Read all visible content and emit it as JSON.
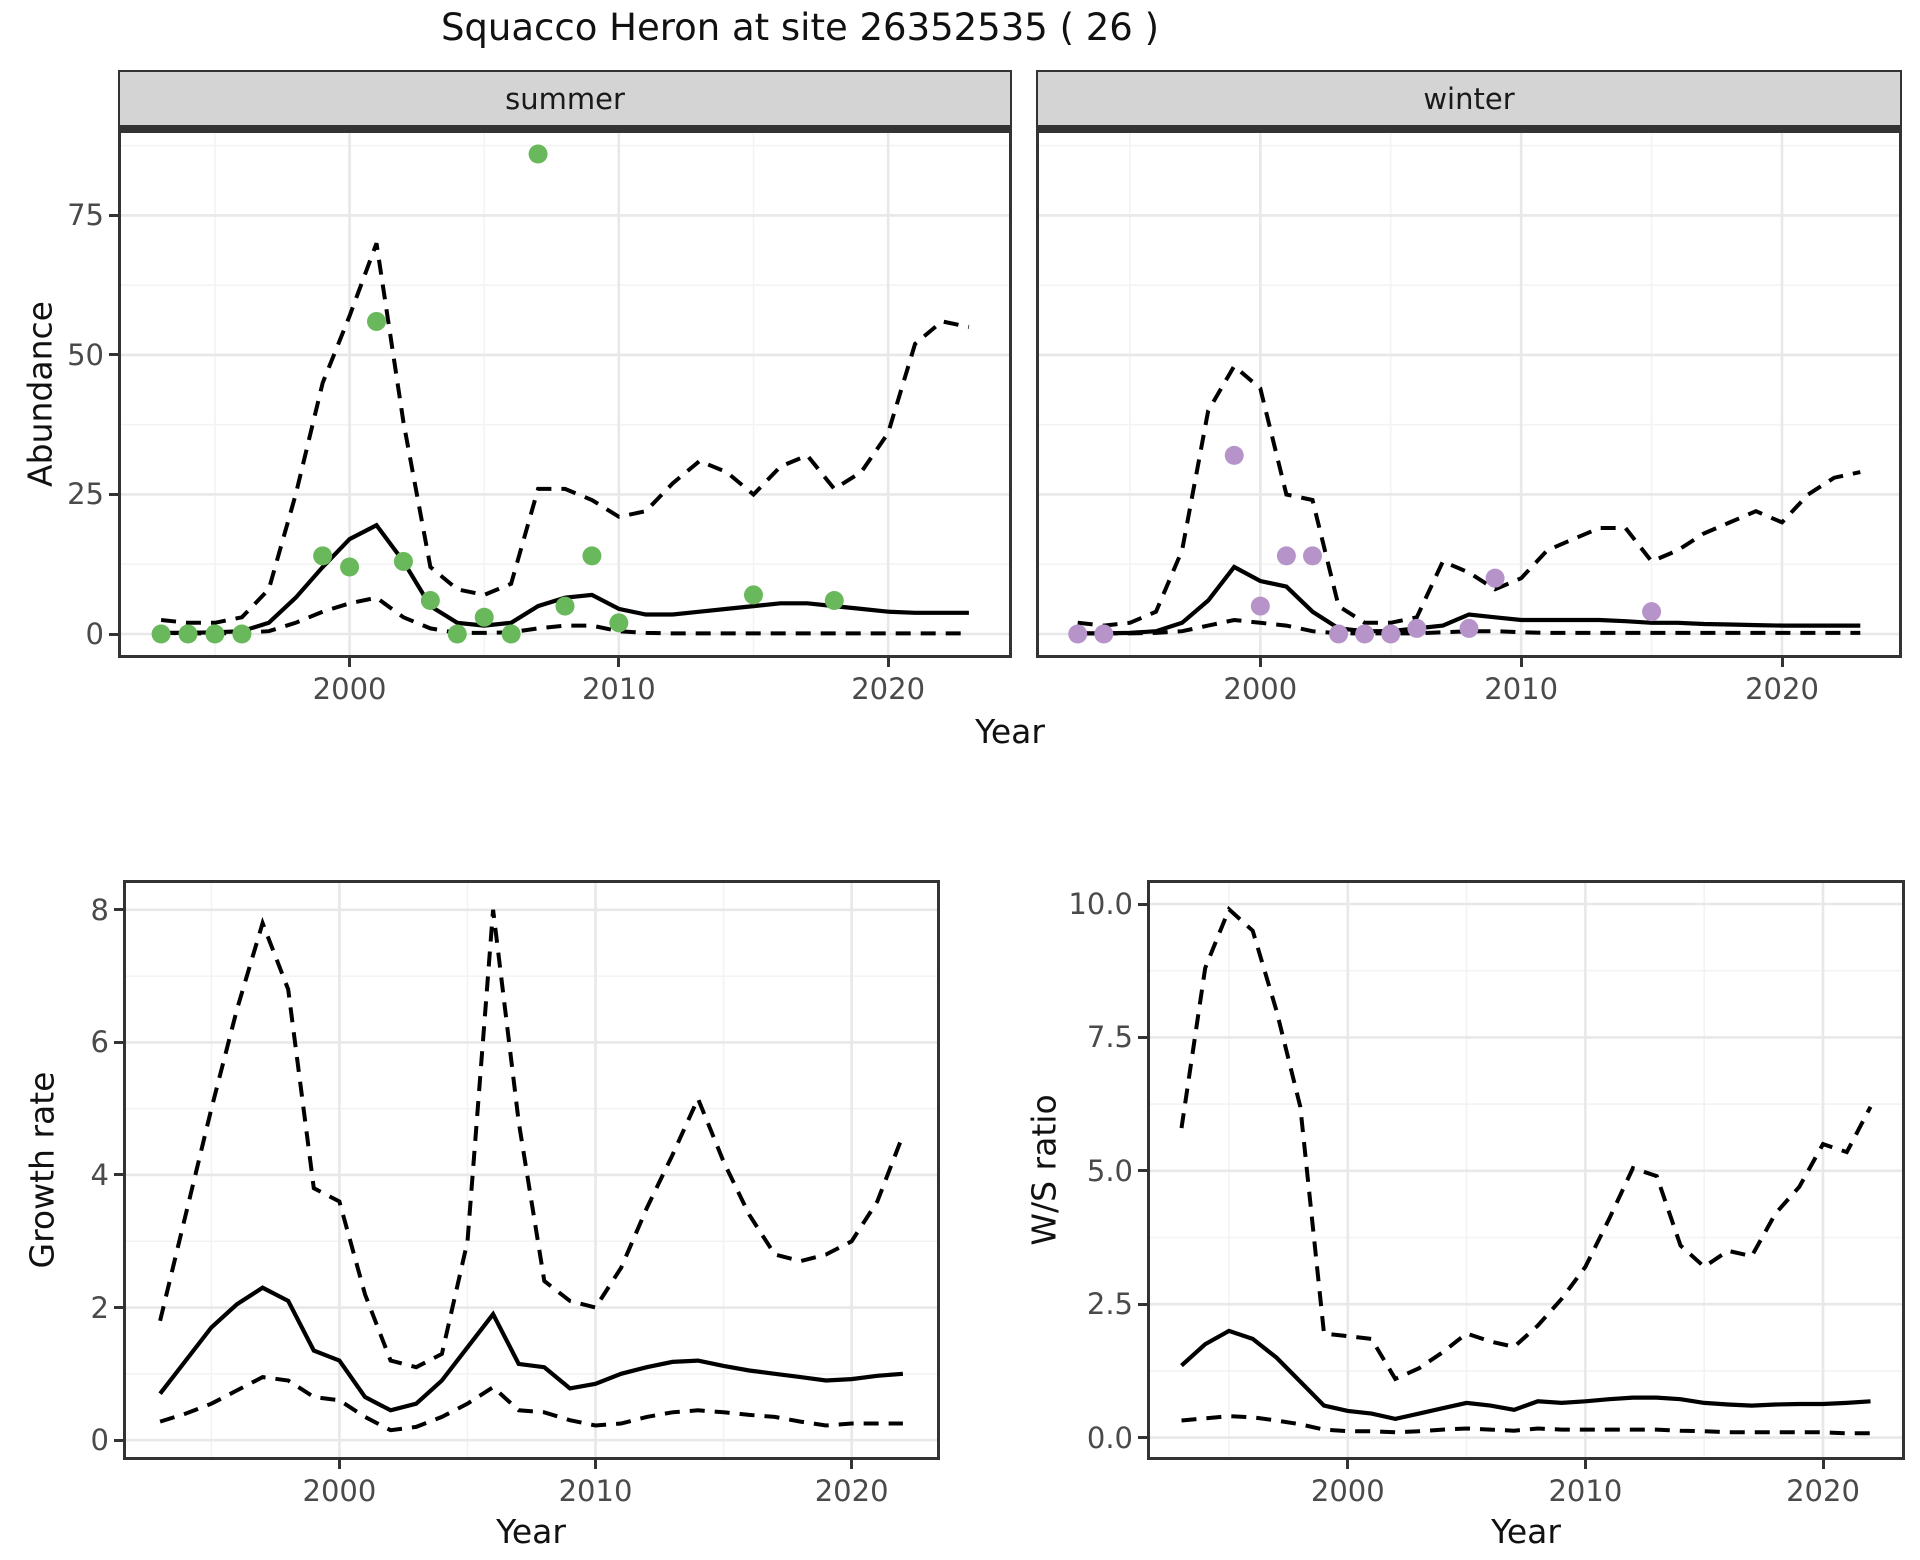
{
  "figure": {
    "title": "Squacco Heron at site 26352535 ( 26 )",
    "background": "#ffffff"
  },
  "colors": {
    "summer_point": "#6ab85c",
    "winter_point": "#b694ca",
    "line": "#000000",
    "grid_major": "#e8e8e8",
    "grid_minor": "#f3f3f3",
    "strip_bg": "#d4d4d4",
    "panel_border": "#333333",
    "tick_label": "#4a4a4a"
  },
  "chart_data": {
    "type": "line",
    "figure_title": "Squacco Heron at site 26352535 ( 26 )",
    "grid": true,
    "legend": false,
    "panels": [
      {
        "id": "abundance-summer",
        "facet": "summer",
        "xlabel": "Year",
        "ylabel": "Abundance",
        "xlim": [
          1991.4,
          2024.6
        ],
        "ylim": [
          -4.3,
          90.3
        ],
        "x_ticks": [
          2000,
          2010,
          2020
        ],
        "x_minor": [
          1995,
          2005,
          2015
        ],
        "y_ticks": [
          0,
          25,
          50,
          75
        ],
        "y_tick_labels": [
          "0",
          "25",
          "50",
          "75"
        ],
        "y_minor": [
          12.5,
          37.5,
          62.5,
          87.5
        ],
        "years": [
          1993,
          1994,
          1995,
          1996,
          1997,
          1998,
          1999,
          2000,
          2001,
          2002,
          2003,
          2004,
          2005,
          2006,
          2007,
          2008,
          2009,
          2010,
          2011,
          2012,
          2013,
          2014,
          2015,
          2016,
          2017,
          2018,
          2019,
          2020,
          2021,
          2022,
          2023
        ],
        "median": [
          0.2,
          0.2,
          0.3,
          0.5,
          2,
          6.5,
          12,
          17,
          19.5,
          13,
          5,
          2,
          1.5,
          2,
          5,
          6.5,
          7,
          4.5,
          3.5,
          3.5,
          4,
          4.5,
          5,
          5.5,
          5.5,
          5,
          4.5,
          4,
          3.8,
          3.8,
          3.8
        ],
        "upper": [
          2.5,
          2,
          2,
          3,
          8,
          25,
          45,
          57,
          70,
          38,
          12,
          8,
          7,
          9,
          26,
          26,
          24,
          21,
          22,
          27,
          31,
          29,
          25,
          30,
          32,
          26,
          29,
          36,
          52,
          56,
          55
        ],
        "lower": [
          0.2,
          0.1,
          0.1,
          0.2,
          0.5,
          2,
          4,
          5.5,
          6.5,
          3,
          1,
          0.2,
          0.2,
          0.3,
          1,
          1.5,
          1.5,
          0.5,
          0.2,
          0.1,
          0.1,
          0.1,
          0.1,
          0.1,
          0.1,
          0.1,
          0.1,
          0.1,
          0.1,
          0.1,
          0.1
        ],
        "points": {
          "name": "summer-observations",
          "color_key": "summer_point",
          "years": [
            1993,
            1994,
            1995,
            1996,
            1999,
            2000,
            2001,
            2002,
            2003,
            2004,
            2005,
            2006,
            2007,
            2008,
            2009,
            2010,
            2015,
            2018
          ],
          "values": [
            0,
            0,
            0,
            0,
            14,
            12,
            56,
            13,
            6,
            0,
            3,
            0,
            86,
            5,
            14,
            2,
            7,
            6
          ]
        }
      },
      {
        "id": "abundance-winter",
        "facet": "winter",
        "xlabel": "Year",
        "ylabel": "Abundance",
        "xlim": [
          1991.4,
          2024.6
        ],
        "ylim": [
          -4.3,
          90.3
        ],
        "x_ticks": [
          2000,
          2010,
          2020
        ],
        "x_minor": [
          1995,
          2005,
          2015
        ],
        "y_ticks": [
          0,
          25,
          50,
          75
        ],
        "y_tick_labels": [],
        "y_minor": [
          12.5,
          37.5,
          62.5,
          87.5
        ],
        "years": [
          1993,
          1994,
          1995,
          1996,
          1997,
          1998,
          1999,
          2000,
          2001,
          2002,
          2003,
          2004,
          2005,
          2006,
          2007,
          2008,
          2009,
          2010,
          2011,
          2012,
          2013,
          2014,
          2015,
          2016,
          2017,
          2018,
          2019,
          2020,
          2021,
          2022,
          2023
        ],
        "median": [
          0.1,
          0.1,
          0.2,
          0.5,
          2,
          6,
          12,
          9.5,
          8.5,
          4,
          1,
          0.5,
          0.5,
          1,
          1.5,
          3.5,
          3,
          2.5,
          2.5,
          2.5,
          2.5,
          2.3,
          2,
          2,
          1.8,
          1.7,
          1.6,
          1.5,
          1.5,
          1.5,
          1.5
        ],
        "upper": [
          2,
          1.5,
          2,
          4,
          15,
          40,
          48,
          44,
          25,
          24,
          5,
          2,
          2,
          3,
          13,
          11,
          8,
          10,
          15,
          17,
          19,
          19,
          13,
          15,
          18,
          20,
          22,
          20,
          25,
          28,
          29
        ],
        "lower": [
          0.1,
          0.1,
          0.1,
          0.2,
          0.5,
          1.5,
          2.5,
          2,
          1.5,
          0.5,
          0.1,
          0.1,
          0.1,
          0.1,
          0.3,
          0.5,
          0.5,
          0.3,
          0.2,
          0.2,
          0.2,
          0.2,
          0.2,
          0.2,
          0.2,
          0.2,
          0.2,
          0.2,
          0.2,
          0.2,
          0.2
        ],
        "points": {
          "name": "winter-observations",
          "color_key": "winter_point",
          "years": [
            1993,
            1994,
            1999,
            2000,
            2001,
            2002,
            2003,
            2004,
            2005,
            2006,
            2008,
            2009,
            2015
          ],
          "values": [
            0,
            0,
            32,
            5,
            14,
            14,
            0,
            0,
            0,
            1,
            1,
            10,
            4
          ]
        }
      },
      {
        "id": "growth-rate",
        "facet": null,
        "xlabel": "Year",
        "ylabel": "Growth rate",
        "xlim": [
          1991.55,
          2023.45
        ],
        "ylim": [
          -0.3,
          8.45
        ],
        "x_ticks": [
          2000,
          2010,
          2020
        ],
        "x_minor": [
          1995,
          2005,
          2015
        ],
        "y_ticks": [
          0,
          2,
          4,
          6,
          8
        ],
        "y_tick_labels": [
          "0",
          "2",
          "4",
          "6",
          "8"
        ],
        "y_minor": [
          1,
          3,
          5,
          7
        ],
        "years": [
          1993,
          1994,
          1995,
          1996,
          1997,
          1998,
          1999,
          2000,
          2001,
          2002,
          2003,
          2004,
          2005,
          2006,
          2007,
          2008,
          2009,
          2010,
          2011,
          2012,
          2013,
          2014,
          2015,
          2016,
          2017,
          2018,
          2019,
          2020,
          2021,
          2022
        ],
        "median": [
          0.7,
          1.2,
          1.7,
          2.05,
          2.3,
          2.1,
          1.35,
          1.2,
          0.65,
          0.45,
          0.55,
          0.9,
          1.4,
          1.9,
          1.15,
          1.1,
          0.78,
          0.85,
          1.0,
          1.1,
          1.18,
          1.2,
          1.12,
          1.05,
          1.0,
          0.95,
          0.9,
          0.92,
          0.97,
          1.0
        ],
        "upper": [
          1.8,
          3.4,
          5.0,
          6.5,
          7.8,
          6.8,
          3.8,
          3.6,
          2.2,
          1.2,
          1.1,
          1.3,
          3.0,
          8.0,
          4.8,
          2.4,
          2.1,
          2.0,
          2.6,
          3.5,
          4.3,
          5.15,
          4.2,
          3.4,
          2.8,
          2.7,
          2.8,
          3.0,
          3.6,
          4.6
        ],
        "lower": [
          0.28,
          0.4,
          0.55,
          0.75,
          0.95,
          0.9,
          0.65,
          0.6,
          0.35,
          0.15,
          0.2,
          0.35,
          0.55,
          0.8,
          0.45,
          0.42,
          0.3,
          0.22,
          0.25,
          0.35,
          0.42,
          0.45,
          0.42,
          0.38,
          0.35,
          0.28,
          0.22,
          0.25,
          0.25,
          0.25
        ],
        "points": null
      },
      {
        "id": "ws-ratio",
        "facet": null,
        "xlabel": "Year",
        "ylabel": "W/S ratio",
        "xlim": [
          1991.55,
          2023.45
        ],
        "ylim": [
          -0.42,
          10.45
        ],
        "x_ticks": [
          2000,
          2010,
          2020
        ],
        "x_minor": [
          1995,
          2005,
          2015
        ],
        "y_ticks": [
          0,
          2.5,
          5,
          7.5,
          10
        ],
        "y_tick_labels": [
          "0.0",
          "2.5",
          "5.0",
          "7.5",
          "10.0"
        ],
        "y_minor": [
          1.25,
          3.75,
          6.25,
          8.75
        ],
        "years": [
          1993,
          1994,
          1995,
          1996,
          1997,
          1998,
          1999,
          2000,
          2001,
          2002,
          2003,
          2004,
          2005,
          2006,
          2007,
          2008,
          2009,
          2010,
          2011,
          2012,
          2013,
          2014,
          2015,
          2016,
          2017,
          2018,
          2019,
          2020,
          2021,
          2022
        ],
        "median": [
          1.35,
          1.75,
          2.0,
          1.85,
          1.5,
          1.05,
          0.6,
          0.5,
          0.45,
          0.35,
          0.45,
          0.55,
          0.65,
          0.6,
          0.52,
          0.68,
          0.65,
          0.68,
          0.72,
          0.75,
          0.75,
          0.72,
          0.65,
          0.62,
          0.6,
          0.62,
          0.63,
          0.63,
          0.65,
          0.68
        ],
        "upper": [
          5.8,
          8.8,
          9.9,
          9.5,
          8.0,
          6.2,
          1.95,
          1.9,
          1.85,
          1.1,
          1.3,
          1.6,
          1.95,
          1.8,
          1.7,
          2.1,
          2.6,
          3.2,
          4.1,
          5.05,
          4.9,
          3.6,
          3.2,
          3.5,
          3.4,
          4.2,
          4.7,
          5.5,
          5.35,
          6.2
        ],
        "lower": [
          0.32,
          0.36,
          0.4,
          0.38,
          0.32,
          0.25,
          0.15,
          0.12,
          0.12,
          0.1,
          0.12,
          0.15,
          0.17,
          0.15,
          0.13,
          0.17,
          0.15,
          0.15,
          0.15,
          0.15,
          0.15,
          0.13,
          0.12,
          0.1,
          0.1,
          0.1,
          0.1,
          0.1,
          0.08,
          0.08
        ],
        "points": null
      }
    ]
  }
}
